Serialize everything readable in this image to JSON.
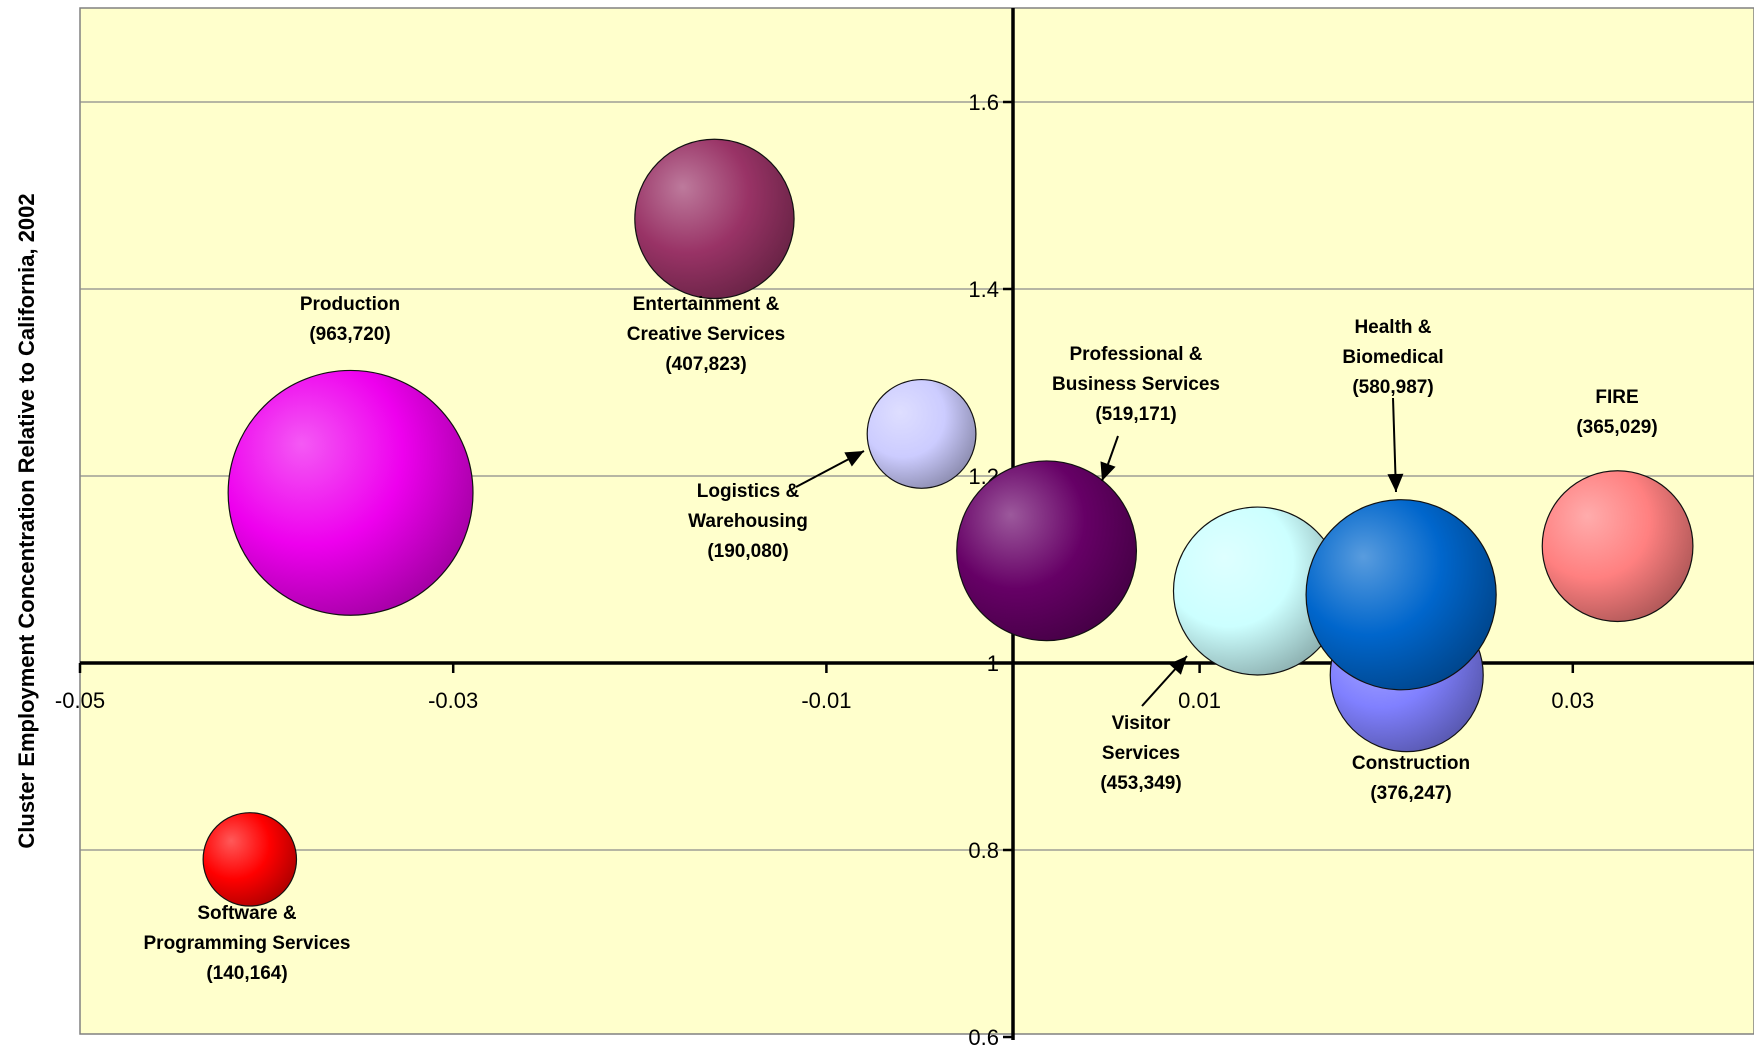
{
  "chart_data": {
    "type": "bubble",
    "title": "",
    "xlabel": "",
    "ylabel": "Cluster Employment Concentration Relative to California, 2002",
    "xlim": [
      -0.05,
      0.04
    ],
    "ylim": [
      0.6,
      1.7
    ],
    "x_ticks": [
      {
        "value": -0.05,
        "label": "-0.05"
      },
      {
        "value": -0.03,
        "label": "-0.03"
      },
      {
        "value": -0.01,
        "label": "-0.01"
      },
      {
        "value": 0.01,
        "label": "0.01"
      },
      {
        "value": 0.03,
        "label": "0.03"
      }
    ],
    "y_ticks": [
      {
        "value": 0.6,
        "label": "0.6"
      },
      {
        "value": 0.8,
        "label": "0.8"
      },
      {
        "value": 1.0,
        "label": "1"
      },
      {
        "value": 1.2,
        "label": "1.2"
      },
      {
        "value": 1.4,
        "label": "1.4"
      },
      {
        "value": 1.6,
        "label": "1.6"
      }
    ],
    "grid": true,
    "plot_background": "#ffffcc",
    "series": [
      {
        "name": "Production",
        "label_lines": [
          "Production",
          "(963,720)"
        ],
        "x": -0.0355,
        "y": 1.182,
        "size": 963720,
        "color": "#ee00ee"
      },
      {
        "name": "Entertainment & Creative Services",
        "label_lines": [
          "Entertainment &",
          "Creative Services",
          "(407,823)"
        ],
        "x": -0.016,
        "y": 1.475,
        "size": 407823,
        "color": "#993366"
      },
      {
        "name": "Logistics & Warehousing",
        "label_lines": [
          "Logistics &",
          "Warehousing",
          "(190,080)"
        ],
        "x": -0.0049,
        "y": 1.245,
        "size": 190080,
        "color": "#ccccff"
      },
      {
        "name": "Professional & Business Services",
        "label_lines": [
          "Professional &",
          "Business Services",
          "(519,171)"
        ],
        "x": 0.0018,
        "y": 1.12,
        "size": 519171,
        "color": "#660066"
      },
      {
        "name": "Visitor Services",
        "label_lines": [
          "Visitor",
          "Services",
          "(453,349)"
        ],
        "x": 0.0131,
        "y": 1.077,
        "size": 453349,
        "color": "#ccffff"
      },
      {
        "name": "Construction",
        "label_lines": [
          "Construction",
          "(376,247)"
        ],
        "x": 0.0211,
        "y": 0.987,
        "size": 376247,
        "color": "#8080ff"
      },
      {
        "name": "Health & Biomedical",
        "label_lines": [
          "Health &",
          "Biomedical",
          "(580,987)"
        ],
        "x": 0.0208,
        "y": 1.073,
        "size": 580987,
        "color": "#0066cc"
      },
      {
        "name": "FIRE",
        "label_lines": [
          "FIRE",
          "(365,029)"
        ],
        "x": 0.0324,
        "y": 1.125,
        "size": 365029,
        "color": "#ff8080"
      },
      {
        "name": "Software & Programming Services",
        "label_lines": [
          "Software &",
          "Programming Services",
          "(140,164)"
        ],
        "x": -0.0409,
        "y": 0.79,
        "size": 140164,
        "color": "#ff0000"
      }
    ]
  }
}
